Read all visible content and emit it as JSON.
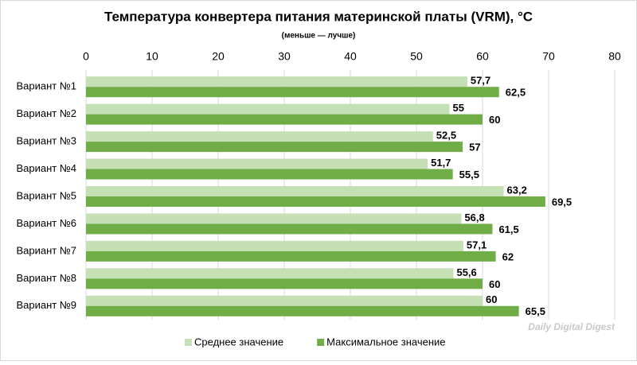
{
  "chart_data": {
    "type": "bar",
    "orientation": "horizontal",
    "title": "Температура конвертера питания материнской платы (VRM), °C",
    "subtitle": "(меньше — лучше)",
    "categories": [
      "Вариант №1",
      "Вариант №2",
      "Вариант №3",
      "Вариант №4",
      "Вариант №5",
      "Вариант №6",
      "Вариант №7",
      "Вариант №8",
      "Вариант №9"
    ],
    "series": [
      {
        "name": "Среднее значение",
        "color": "#c5e0b4",
        "values": [
          57.7,
          55,
          52.5,
          51.7,
          63.2,
          56.8,
          57.1,
          55.6,
          60
        ],
        "value_labels": [
          "57,7",
          "55",
          "52,5",
          "51,7",
          "63,2",
          "56,8",
          "57,1",
          "55,6",
          "60"
        ]
      },
      {
        "name": "Максимальное значение",
        "color": "#70ad47",
        "values": [
          62.5,
          60,
          57,
          55.5,
          69.5,
          61.5,
          62,
          60,
          65.5
        ],
        "value_labels": [
          "62,5",
          "60",
          "57",
          "55,5",
          "69,5",
          "61,5",
          "62",
          "60",
          "65,5"
        ]
      }
    ],
    "xlim": [
      0,
      80
    ],
    "xticks": [
      0,
      10,
      20,
      30,
      40,
      50,
      60,
      70,
      80
    ],
    "grid": true,
    "legend": "bottom",
    "watermark": "Daily Digital Digest"
  }
}
